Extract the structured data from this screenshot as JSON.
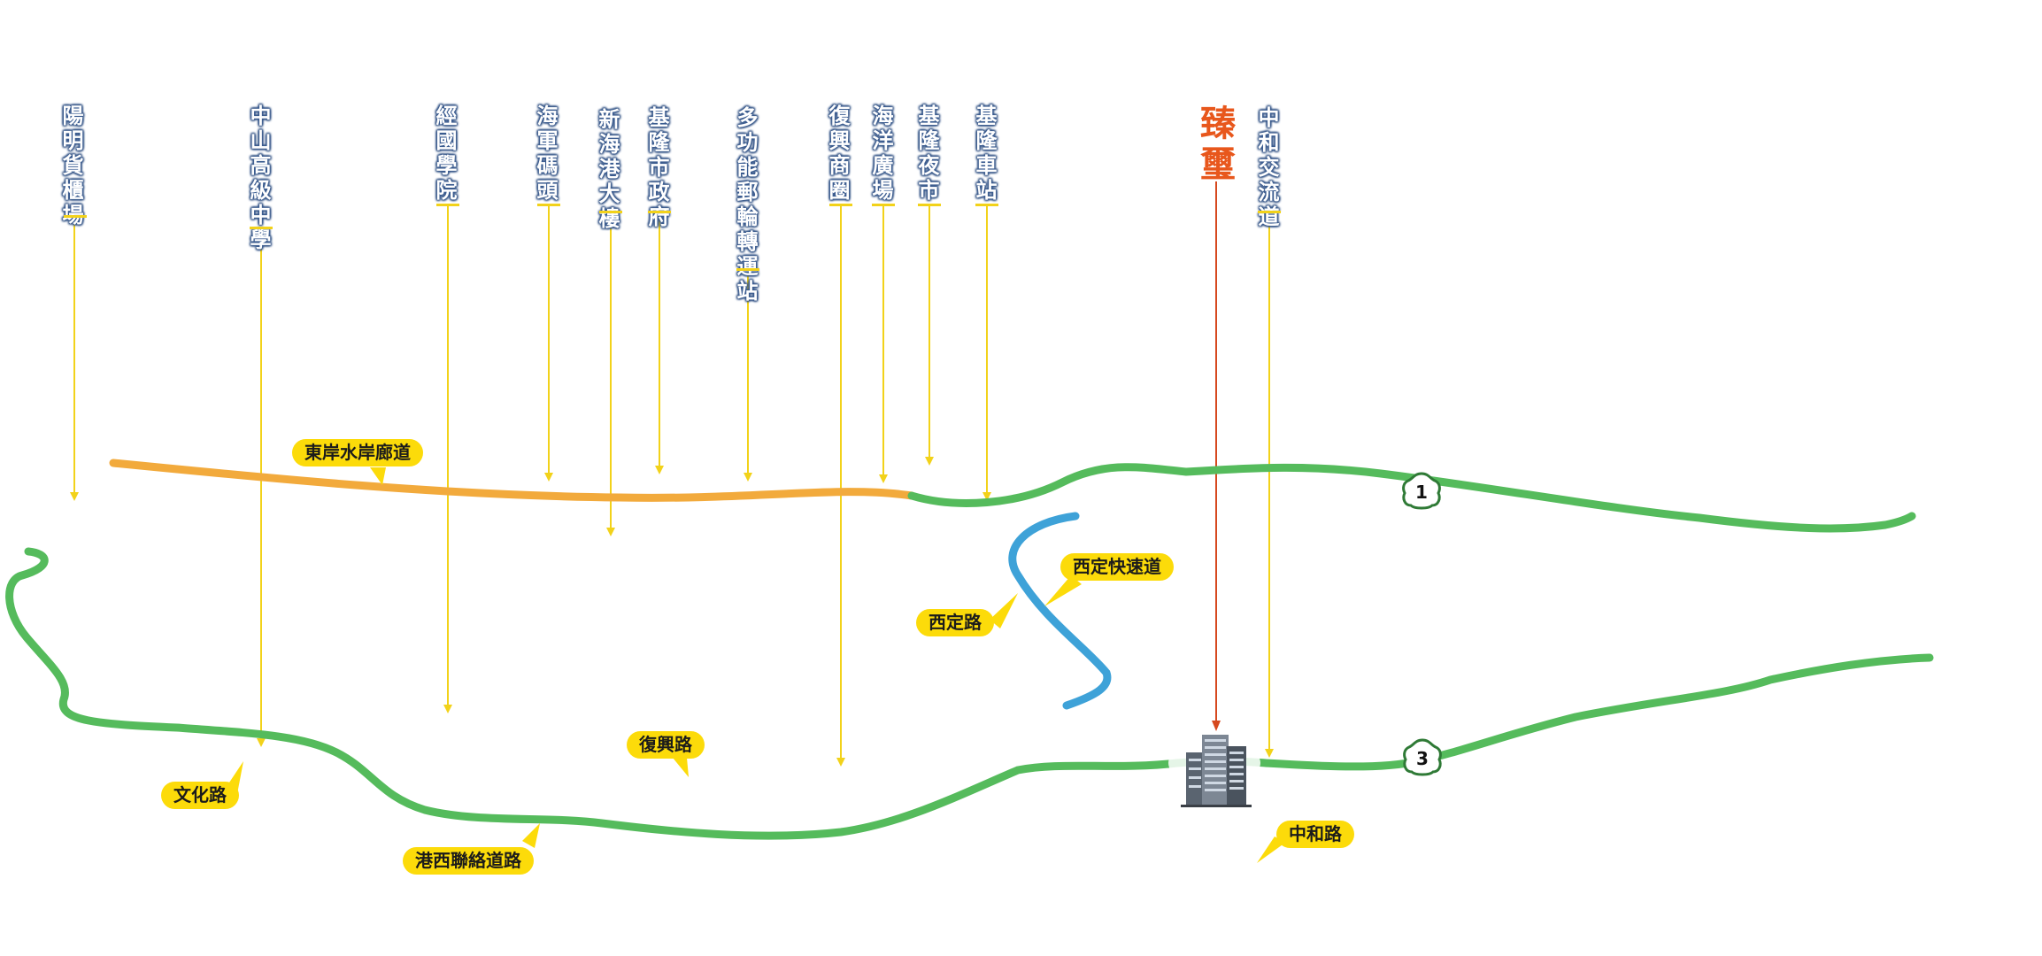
{
  "landmarks": [
    "陽明貨櫃場",
    "中山高級中學",
    "經國學院",
    "海軍碼頭",
    "新海港大樓",
    "基隆市政府",
    "多功能郵輪轉運站",
    "復興商圈",
    "海洋廣場",
    "基隆夜市",
    "基隆車站",
    "中和交流道"
  ],
  "project": "臻璽",
  "roads": {
    "east_coast_corridor": "東岸水岸廊道",
    "xiding_expressway": "西定快速道",
    "xiding_road": "西定路",
    "fuxing_road": "復興路",
    "wenhua_road": "文化路",
    "gangxi_link_road": "港西聯絡道路",
    "zhonghe_road": "中和路"
  },
  "highways": {
    "h1": "1",
    "h3": "3"
  },
  "colors": {
    "green_road": "#55bb5c",
    "orange_road": "#f2aa3c",
    "blue_road": "#3ea2d8",
    "leader_yellow": "#f2d21a",
    "leader_red": "#d6491f",
    "label_yellow": "#fcdb0a",
    "project_orange": "#e8571c"
  },
  "icons": {
    "building": "building-icon",
    "highway_shield": "highway-shield-icon"
  }
}
